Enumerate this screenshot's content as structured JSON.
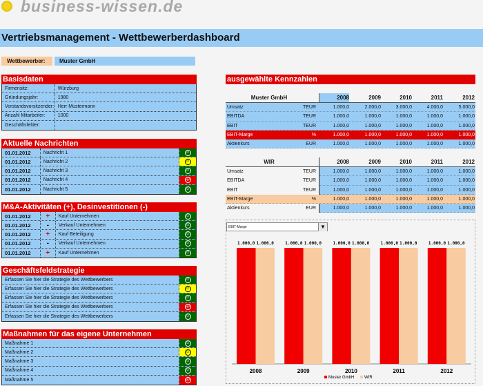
{
  "logo": {
    "text": "business-wissen.de"
  },
  "title": "Vertriebsmanagement - Wettbewerberdashboard",
  "competitor": {
    "label": "Wettbewerber:",
    "value": "Muster GmbH"
  },
  "colors": {
    "red": "#e00000",
    "blue": "#99ccf5",
    "tan": "#f8cba0",
    "green": "#006600",
    "yellow": "#ffff00"
  },
  "basisdaten": {
    "title": "Basisdaten",
    "rows": [
      {
        "label": "Firmensitz:",
        "value": "Würzburg"
      },
      {
        "label": "Gründungsjahr:",
        "value": "1980"
      },
      {
        "label": "Vorstandsvorsitzender:",
        "value": "Herr Mustermann"
      },
      {
        "label": "Anzahl Mitarbeiter:",
        "value": "1000"
      },
      {
        "label": "Geschäftsfelder:",
        "value": ""
      }
    ]
  },
  "news": {
    "title": "Aktuelle Nachrichten",
    "rows": [
      {
        "date": "01.01.2012",
        "text": "Nachricht 1",
        "status": "green"
      },
      {
        "date": "01.01.2012",
        "text": "Nachricht 2",
        "status": "yellow"
      },
      {
        "date": "01.01.2012",
        "text": "Nachricht 3",
        "status": "green"
      },
      {
        "date": "01.01.2012",
        "text": "Nachricht 4",
        "status": "red"
      },
      {
        "date": "01.01.2012",
        "text": "Nachricht 5",
        "status": "green"
      }
    ]
  },
  "ma": {
    "title": "M&A-Aktivitäten (+), Desinvestitionen (-)",
    "rows": [
      {
        "date": "01.01.2012",
        "sign": "+",
        "text": "Kauf Unternehmen",
        "status": "green"
      },
      {
        "date": "01.01.2012",
        "sign": "-",
        "text": "Verkauf Unternehmen",
        "status": "green"
      },
      {
        "date": "01.01.2012",
        "sign": "+",
        "text": "Kauf Beteiligung",
        "status": "green"
      },
      {
        "date": "01.01.2012",
        "sign": "-",
        "text": "Verkauf Unternehmen",
        "status": "green"
      },
      {
        "date": "01.01.2012",
        "sign": "+",
        "text": "Kauf Unternehmen",
        "status": "green"
      }
    ]
  },
  "strategy": {
    "title": "Geschäftsfeldstrategie",
    "rows": [
      {
        "text": "Erfassen Sie hier die Strategie des Wettbewerbers",
        "status": "green"
      },
      {
        "text": "Erfassen Sie hier die Strategie des Wettbewerbers",
        "status": "yellow"
      },
      {
        "text": "Erfassen Sie hier die Strategie des Wettbewerbers",
        "status": "green"
      },
      {
        "text": "Erfassen Sie hier die Strategie des Wettbewerbers",
        "status": "red"
      },
      {
        "text": "Erfassen Sie hier die Strategie des Wettbewerbers",
        "status": "green"
      }
    ]
  },
  "measures": {
    "title": "Maßnahmen für das eigene Unternehmen",
    "rows": [
      {
        "text": "Maßnahme 1",
        "status": "green"
      },
      {
        "text": "Maßnahme 2",
        "status": "yellow"
      },
      {
        "text": "Maßnahme 3",
        "status": "green"
      },
      {
        "text": "Maßnahme 4",
        "status": "green"
      },
      {
        "text": "Maßnahme 5",
        "status": "red"
      }
    ]
  },
  "kennzahlen": {
    "title": "ausgewählte Kennzahlen",
    "years": [
      "2008",
      "2009",
      "2010",
      "2011",
      "2012"
    ],
    "tables": [
      {
        "name": "Muster GmbH",
        "rows": [
          {
            "label": "Umsatz",
            "unit": "TEUR",
            "values": [
              "1.000,0",
              "2.000,0",
              "3.000,0",
              "4.000,0",
              "5.000,0"
            ]
          },
          {
            "label": "EBITDA",
            "unit": "TEUR",
            "values": [
              "1.000,0",
              "1.000,0",
              "1.000,0",
              "1.000,0",
              "1.000,0"
            ]
          },
          {
            "label": "EBIT",
            "unit": "TEUR",
            "values": [
              "1.000,0",
              "1.000,0",
              "1.000,0",
              "1.000,0",
              "1.000,0"
            ]
          },
          {
            "label": "EBIT-Marge",
            "unit": "%",
            "values": [
              "1.000,0",
              "1.000,0",
              "1.000,0",
              "1.000,0",
              "1.000,0"
            ],
            "highlight": true
          },
          {
            "label": "Aktienkurs",
            "unit": "EUR",
            "values": [
              "1.000,0",
              "1.000,0",
              "1.000,0",
              "1.000,0",
              "1.000,0"
            ]
          }
        ]
      },
      {
        "name": "WIR",
        "rows": [
          {
            "label": "Umsatz",
            "unit": "TEUR",
            "values": [
              "1.000,0",
              "1.000,0",
              "1.000,0",
              "1.000,0",
              "1.000,0"
            ]
          },
          {
            "label": "EBITDA",
            "unit": "TEUR",
            "values": [
              "1.000,0",
              "1.000,0",
              "1.000,0",
              "1.000,0",
              "1.000,0"
            ]
          },
          {
            "label": "EBIT",
            "unit": "TEUR",
            "values": [
              "1.000,0",
              "1.000,0",
              "1.000,0",
              "1.000,0",
              "1.000,0"
            ]
          },
          {
            "label": "EBIT-Marge",
            "unit": "%",
            "values": [
              "1.000,0",
              "1.000,0",
              "1.000,0",
              "1.000,0",
              "1.000,0"
            ],
            "highlight": true
          },
          {
            "label": "Aktienkurs",
            "unit": "EUR",
            "values": [
              "1.000,0",
              "1.000,0",
              "1.000,0",
              "1.000,0",
              "1.000,0"
            ]
          }
        ]
      }
    ]
  },
  "chart": {
    "selector": "EBIT-Marge",
    "chart_data": {
      "type": "bar",
      "categories": [
        "2008",
        "2009",
        "2010",
        "2011",
        "2012"
      ],
      "series": [
        {
          "name": "Muster GmbH",
          "values": [
            1000,
            1000,
            1000,
            1000,
            1000
          ],
          "labels": [
            "1.000,0",
            "1.000,0",
            "1.000,0",
            "1.000,0",
            "1.000,0"
          ],
          "color": "#f00000"
        },
        {
          "name": "WIR",
          "values": [
            1000,
            1000,
            1000,
            1000,
            1000
          ],
          "labels": [
            "1.000,0",
            "1.000,0",
            "1.000,0",
            "1.000,0",
            "1.000,0"
          ],
          "color": "#f8cba0"
        }
      ],
      "legend": "bottom",
      "grid": false
    }
  }
}
